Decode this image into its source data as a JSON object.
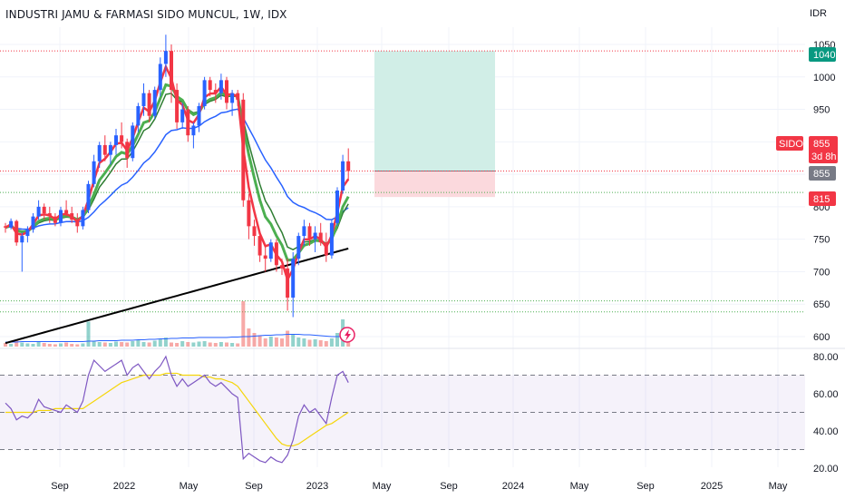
{
  "header": {
    "title": "INDUSTRI JAMU & FARMASI SIDO MUNCUL, 1W, IDX",
    "currency": "IDR"
  },
  "badges": {
    "target_price": "1040",
    "symbol": "SIDO",
    "last_price": "855",
    "countdown": "3d 8h",
    "entry_price": "855",
    "stop_price": "815"
  },
  "colors": {
    "up": "#2962ff",
    "down": "#f23645",
    "ema_fast": "#f23645",
    "ema_mid": "#2e7d32",
    "ema_green": "#4caf50",
    "sma_blue": "#2962ff",
    "sma_black": "#000000",
    "rsi": "#7e57c2",
    "rsi_ma": "#f5d60a",
    "target_zone": "#d1eee7",
    "stop_zone": "#fbd9dd"
  },
  "chart_data": [
    {
      "type": "candlestick",
      "symbol": "SIDO",
      "timeframe": "1W",
      "exchange": "IDX",
      "y_axis": {
        "ticks": [
          600,
          650,
          700,
          750,
          800,
          850,
          900,
          950,
          1000,
          1050
        ],
        "range": [
          590,
          1070
        ]
      },
      "x_axis": {
        "labels": [
          "Sep",
          "2022",
          "May",
          "Sep",
          "2023",
          "May",
          "Sep",
          "2024",
          "May",
          "Sep",
          "2025",
          "May"
        ]
      },
      "candles": [
        [
          770,
          775,
          760,
          768
        ],
        [
          768,
          782,
          765,
          778
        ],
        [
          778,
          780,
          740,
          745
        ],
        [
          745,
          760,
          700,
          755
        ],
        [
          755,
          770,
          745,
          765
        ],
        [
          765,
          790,
          760,
          785
        ],
        [
          785,
          810,
          780,
          800
        ],
        [
          800,
          805,
          780,
          790
        ],
        [
          790,
          800,
          775,
          785
        ],
        [
          785,
          790,
          770,
          775
        ],
        [
          775,
          800,
          770,
          795
        ],
        [
          795,
          810,
          785,
          790
        ],
        [
          790,
          800,
          775,
          780
        ],
        [
          780,
          790,
          760,
          770
        ],
        [
          770,
          800,
          765,
          795
        ],
        [
          795,
          840,
          790,
          835
        ],
        [
          835,
          880,
          830,
          870
        ],
        [
          870,
          900,
          860,
          895
        ],
        [
          895,
          910,
          870,
          880
        ],
        [
          880,
          900,
          865,
          895
        ],
        [
          895,
          920,
          880,
          910
        ],
        [
          910,
          930,
          890,
          900
        ],
        [
          900,
          905,
          860,
          875
        ],
        [
          875,
          930,
          870,
          925
        ],
        [
          925,
          960,
          915,
          955
        ],
        [
          955,
          990,
          940,
          975
        ],
        [
          975,
          980,
          930,
          940
        ],
        [
          940,
          985,
          935,
          980
        ],
        [
          980,
          1030,
          970,
          1020
        ],
        [
          1020,
          1065,
          1000,
          1040
        ],
        [
          1040,
          1050,
          960,
          980
        ],
        [
          980,
          990,
          920,
          930
        ],
        [
          930,
          960,
          920,
          950
        ],
        [
          950,
          955,
          900,
          910
        ],
        [
          910,
          930,
          890,
          925
        ],
        [
          925,
          960,
          915,
          955
        ],
        [
          955,
          1000,
          950,
          995
        ],
        [
          995,
          1000,
          970,
          980
        ],
        [
          980,
          990,
          960,
          975
        ],
        [
          975,
          1005,
          965,
          995
        ],
        [
          995,
          1000,
          950,
          960
        ],
        [
          960,
          980,
          940,
          975
        ],
        [
          975,
          980,
          955,
          965
        ],
        [
          965,
          975,
          800,
          810
        ],
        [
          810,
          820,
          750,
          770
        ],
        [
          770,
          780,
          740,
          755
        ],
        [
          755,
          760,
          715,
          725
        ],
        [
          725,
          740,
          700,
          720
        ],
        [
          720,
          750,
          715,
          745
        ],
        [
          745,
          750,
          700,
          710
        ],
        [
          710,
          720,
          695,
          705
        ],
        [
          705,
          720,
          640,
          660
        ],
        [
          660,
          730,
          630,
          720
        ],
        [
          720,
          760,
          710,
          755
        ],
        [
          755,
          780,
          740,
          770
        ],
        [
          770,
          775,
          740,
          750
        ],
        [
          750,
          770,
          730,
          760
        ],
        [
          760,
          775,
          740,
          745
        ],
        [
          745,
          760,
          715,
          725
        ],
        [
          725,
          780,
          720,
          775
        ],
        [
          775,
          830,
          770,
          825
        ],
        [
          825,
          880,
          820,
          870
        ],
        [
          870,
          890,
          840,
          855
        ]
      ],
      "target": 1040,
      "entry": 855,
      "stop": 815,
      "horizontal_levels": [
        {
          "value": 1040,
          "color": "#f23645"
        },
        {
          "value": 855,
          "color": "#f23645"
        },
        {
          "value": 822,
          "color": "#4caf50"
        },
        {
          "value": 655,
          "color": "#4caf50"
        },
        {
          "value": 638,
          "color": "#4caf50"
        }
      ],
      "volume": [
        8,
        6,
        14,
        9,
        7,
        6,
        10,
        8,
        6,
        5,
        7,
        9,
        6,
        5,
        7,
        55,
        12,
        10,
        9,
        8,
        11,
        10,
        9,
        12,
        14,
        10,
        9,
        13,
        16,
        20,
        9,
        8,
        12,
        10,
        9,
        11,
        12,
        9,
        8,
        10,
        9,
        8,
        7,
        100,
        40,
        30,
        25,
        18,
        22,
        20,
        18,
        35,
        28,
        20,
        18,
        15,
        16,
        14,
        12,
        18,
        30,
        60,
        30
      ],
      "volume_ma": [
        10,
        10,
        10,
        11,
        11,
        11,
        11,
        11,
        11,
        11,
        11,
        11,
        11,
        11,
        11,
        12,
        12,
        13,
        13,
        13,
        13,
        14,
        14,
        14,
        15,
        15,
        16,
        16,
        17,
        17,
        18,
        18,
        19,
        19,
        19,
        20,
        20,
        20,
        20,
        20,
        20,
        21,
        21,
        22,
        22,
        23,
        24,
        25,
        25,
        26,
        26,
        27,
        27,
        27,
        26,
        26,
        25,
        24,
        23,
        22,
        22,
        22,
        22
      ]
    },
    {
      "type": "line",
      "name": "RSI",
      "y_axis": {
        "ticks": [
          20,
          40,
          60,
          80
        ],
        "range": [
          16,
          84
        ]
      },
      "levels": [
        70,
        50,
        30
      ],
      "values": [
        55,
        52,
        46,
        48,
        47,
        50,
        57,
        53,
        52,
        51,
        50,
        54,
        52,
        50,
        56,
        70,
        78,
        75,
        72,
        74,
        76,
        78,
        70,
        74,
        76,
        72,
        68,
        72,
        75,
        80,
        70,
        64,
        68,
        64,
        66,
        68,
        70,
        66,
        64,
        66,
        63,
        60,
        58,
        25,
        28,
        26,
        24,
        23,
        26,
        24,
        23,
        27,
        35,
        48,
        54,
        50,
        52,
        48,
        44,
        58,
        70,
        72,
        66
      ],
      "ma_values": [
        50,
        50,
        50,
        50,
        50,
        50,
        51,
        51,
        51,
        52,
        52,
        52,
        52,
        52,
        52,
        54,
        56,
        58,
        60,
        62,
        64,
        66,
        67,
        68,
        69,
        70,
        70,
        70,
        70,
        71,
        71,
        71,
        70,
        70,
        70,
        70,
        69,
        69,
        68,
        68,
        67,
        66,
        64,
        60,
        56,
        52,
        48,
        44,
        40,
        36,
        33,
        32,
        32,
        33,
        35,
        37,
        39,
        41,
        43,
        44,
        46,
        48,
        50
      ]
    }
  ]
}
